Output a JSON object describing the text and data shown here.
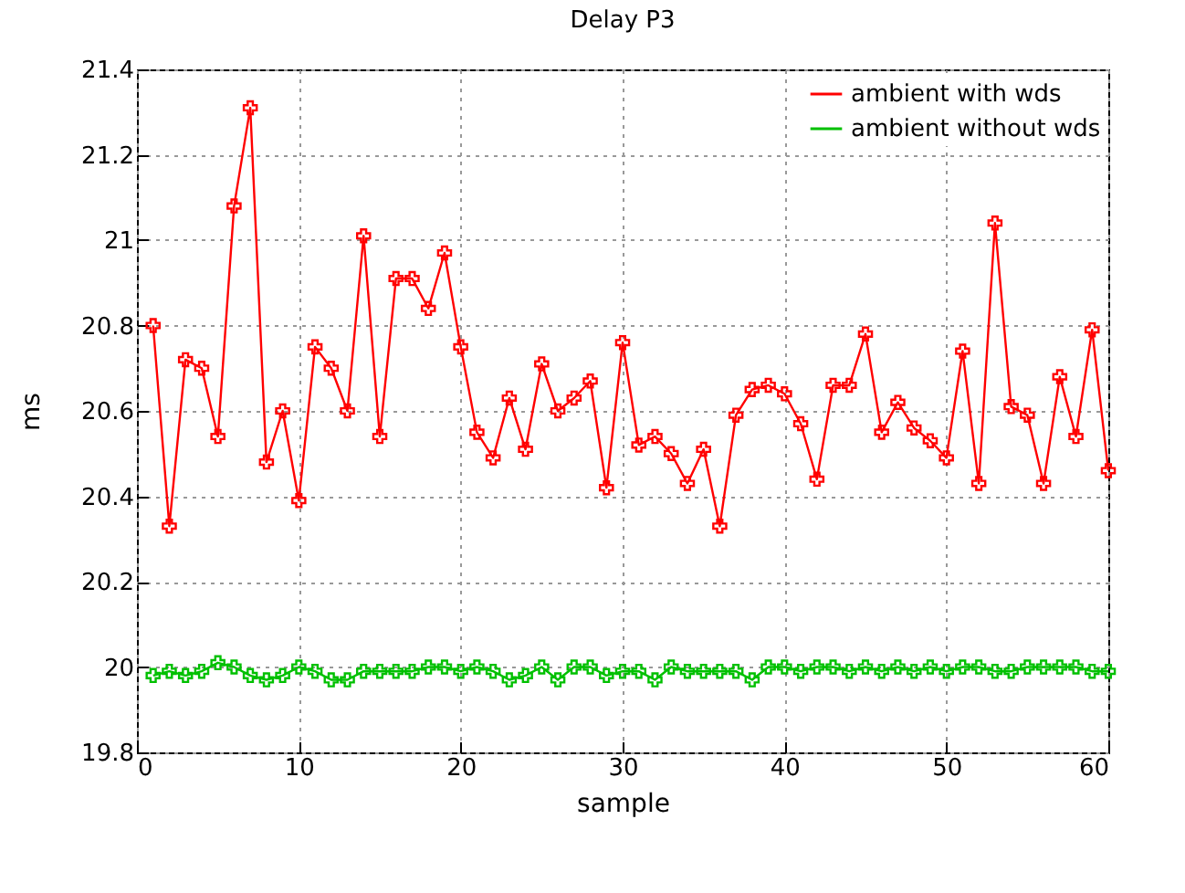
{
  "chart_data": {
    "type": "line",
    "title": "Delay P3",
    "xlabel": "sample",
    "ylabel": "ms",
    "x": [
      1,
      2,
      3,
      4,
      5,
      6,
      7,
      8,
      9,
      10,
      11,
      12,
      13,
      14,
      15,
      16,
      17,
      18,
      19,
      20,
      21,
      22,
      23,
      24,
      25,
      26,
      27,
      28,
      29,
      30,
      31,
      32,
      33,
      34,
      35,
      36,
      37,
      38,
      39,
      40,
      41,
      42,
      43,
      44,
      45,
      46,
      47,
      48,
      49,
      50,
      51,
      52,
      53,
      54,
      55,
      56,
      57,
      58,
      59,
      60
    ],
    "series": [
      {
        "name": "ambient with wds",
        "color": "#ff0000",
        "values": [
          20.8,
          20.33,
          20.72,
          20.7,
          20.54,
          21.08,
          21.31,
          20.48,
          20.6,
          20.39,
          20.75,
          20.7,
          20.6,
          21.01,
          20.54,
          20.91,
          20.91,
          20.84,
          20.97,
          20.75,
          20.55,
          20.49,
          20.63,
          20.51,
          20.71,
          20.6,
          20.63,
          20.67,
          20.42,
          20.76,
          20.52,
          20.54,
          20.5,
          20.43,
          20.51,
          20.33,
          20.59,
          20.65,
          20.66,
          20.64,
          20.57,
          20.44,
          20.66,
          20.66,
          20.78,
          20.55,
          20.62,
          20.56,
          20.53,
          20.49,
          20.74,
          20.43,
          21.04,
          20.61,
          20.59,
          20.43,
          20.68,
          20.54,
          20.79,
          20.46
        ]
      },
      {
        "name": "ambient without wds",
        "color": "#00c000",
        "values": [
          19.98,
          19.99,
          19.98,
          19.99,
          20.01,
          20.0,
          19.98,
          19.97,
          19.98,
          20.0,
          19.99,
          19.97,
          19.97,
          19.99,
          19.99,
          19.99,
          19.99,
          20.0,
          20.0,
          19.99,
          20.0,
          19.99,
          19.97,
          19.98,
          20.0,
          19.97,
          20.0,
          20.0,
          19.98,
          19.99,
          19.99,
          19.97,
          20.0,
          19.99,
          19.99,
          19.99,
          19.99,
          19.97,
          20.0,
          20.0,
          19.99,
          20.0,
          20.0,
          19.99,
          20.0,
          19.99,
          20.0,
          19.99,
          20.0,
          19.99,
          20.0,
          20.0,
          19.99,
          19.99,
          20.0,
          20.0,
          20.0,
          20.0,
          19.99,
          19.99
        ]
      }
    ],
    "xlim": [
      0,
      60
    ],
    "xticks": [
      0,
      10,
      20,
      30,
      40,
      50,
      60
    ],
    "ylim": [
      19.8,
      21.4
    ],
    "yticks": [
      19.8,
      20,
      20.2,
      20.4,
      20.6,
      20.8,
      21,
      21.2,
      21.4
    ],
    "grid": true,
    "legend": "top right",
    "marker": "cross",
    "line_style": "solid"
  }
}
